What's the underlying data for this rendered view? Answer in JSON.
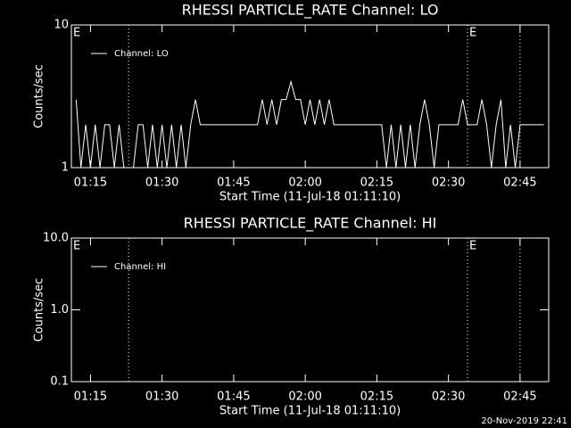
{
  "chart_data": [
    {
      "type": "line",
      "title": "RHESSI PARTICLE_RATE Channel: LO",
      "x_label": "Start Time (11-Jul-18 01:11:10)",
      "y_label": "Counts/sec",
      "log_y": true,
      "legend": "upper left",
      "x": [
        "01:12",
        "01:13",
        "01:14",
        "01:15",
        "01:16",
        "01:17",
        "01:18",
        "01:19",
        "01:20",
        "01:21",
        "01:22",
        "01:23",
        "01:24",
        "01:25",
        "01:26",
        "01:27",
        "01:28",
        "01:29",
        "01:30",
        "01:31",
        "01:32",
        "01:33",
        "01:34",
        "01:35",
        "01:36",
        "01:37",
        "01:38",
        "01:39",
        "01:40",
        "01:41",
        "01:42",
        "01:43",
        "01:44",
        "01:45",
        "01:46",
        "01:47",
        "01:48",
        "01:49",
        "01:50",
        "01:51",
        "01:52",
        "01:53",
        "01:54",
        "01:55",
        "01:56",
        "01:57",
        "01:58",
        "01:59",
        "02:00",
        "02:01",
        "02:02",
        "02:03",
        "02:04",
        "02:05",
        "02:06",
        "02:07",
        "02:08",
        "02:09",
        "02:10",
        "02:11",
        "02:12",
        "02:13",
        "02:14",
        "02:15",
        "02:16",
        "02:17",
        "02:18",
        "02:19",
        "02:20",
        "02:21",
        "02:22",
        "02:23",
        "02:24",
        "02:25",
        "02:26",
        "02:27",
        "02:28",
        "02:29",
        "02:30",
        "02:31",
        "02:32",
        "02:33",
        "02:34",
        "02:35",
        "02:36",
        "02:37",
        "02:38",
        "02:39",
        "02:40",
        "02:41",
        "02:42",
        "02:43",
        "02:44",
        "02:45",
        "02:46",
        "02:47",
        "02:48",
        "02:49",
        "02:50"
      ],
      "series": [
        {
          "name": "Channel: LO",
          "color": "#ffffff",
          "values": [
            3,
            1,
            2,
            1,
            2,
            1,
            2,
            2,
            1,
            2,
            1,
            1,
            1,
            2,
            2,
            1,
            2,
            1,
            2,
            1,
            2,
            1,
            2,
            1,
            2,
            3,
            2,
            2,
            2,
            2,
            2,
            2,
            2,
            2,
            2,
            2,
            2,
            2,
            2,
            3,
            2,
            3,
            2,
            3,
            3,
            4,
            3,
            3,
            2,
            3,
            2,
            3,
            2,
            3,
            2,
            2,
            2,
            2,
            2,
            2,
            2,
            2,
            2,
            2,
            2,
            1,
            2,
            1,
            2,
            1,
            2,
            1,
            2,
            3,
            2,
            1,
            2,
            2,
            2,
            2,
            2,
            3,
            2,
            2,
            2,
            3,
            2,
            1,
            2,
            3,
            1,
            2,
            1,
            2,
            2,
            2,
            2,
            2,
            2
          ]
        }
      ],
      "xlim": [
        "01:11",
        "02:51"
      ],
      "xticks": [
        "01:15",
        "01:30",
        "01:45",
        "02:00",
        "02:15",
        "02:30",
        "02:45"
      ],
      "ylim": [
        1,
        10
      ],
      "yticks": [
        1,
        10
      ],
      "vlines": [
        "01:23",
        "02:34",
        "02:45"
      ],
      "event_labels": [
        {
          "text": "E",
          "x": "01:11"
        },
        {
          "text": "E",
          "x": "02:34"
        }
      ]
    },
    {
      "type": "line",
      "title": "RHESSI PARTICLE_RATE Channel: HI",
      "x_label": "Start Time (11-Jul-18 01:11:10)",
      "y_label": "Counts/sec",
      "log_y": true,
      "legend": "upper left",
      "series": [
        {
          "name": "Channel: HI",
          "color": "#ffffff"
        }
      ],
      "xlim": [
        "01:11",
        "02:51"
      ],
      "xticks": [
        "01:15",
        "01:30",
        "01:45",
        "02:00",
        "02:15",
        "02:30",
        "02:45"
      ],
      "ylim": [
        0.1,
        10
      ],
      "yticks": [
        0.1,
        {
          "value": 1,
          "label": "1.0"
        },
        {
          "value": 10,
          "label": "10.0"
        }
      ],
      "vlines": [
        "01:23",
        "02:34",
        "02:45"
      ],
      "event_labels": [
        {
          "text": "E",
          "x": "01:11"
        },
        {
          "text": "E",
          "x": "02:34"
        }
      ]
    }
  ],
  "footer": "20-Nov-2019 22:41"
}
